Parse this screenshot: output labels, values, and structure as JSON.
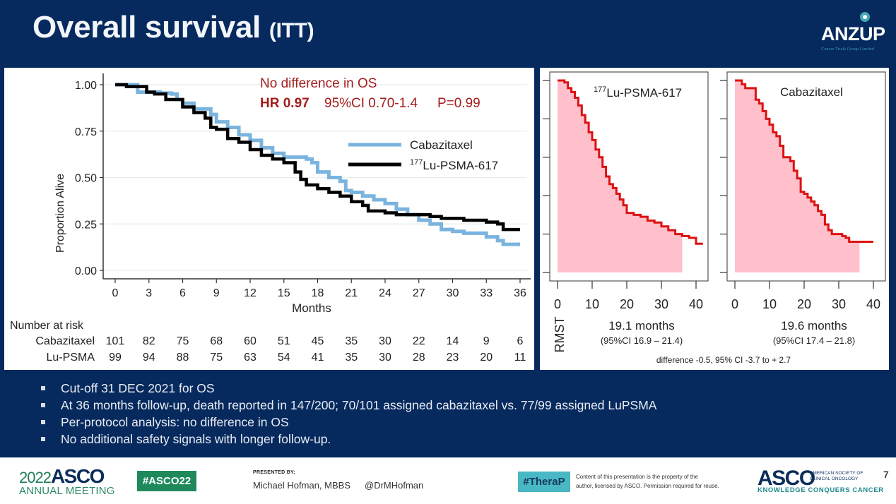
{
  "header": {
    "title": "Overall survival",
    "title_suffix": "(ITT)",
    "logo": {
      "name": "ANZUP",
      "tagline": "Cancer Trials Group Limited"
    }
  },
  "chart_data": [
    {
      "type": "line",
      "subtype": "kaplan-meier",
      "title": "",
      "xlabel": "Months",
      "ylabel": "Proportion Alive",
      "xlim": [
        0,
        36
      ],
      "ylim": [
        0,
        1
      ],
      "x_ticks": [
        0,
        3,
        6,
        9,
        12,
        15,
        18,
        21,
        24,
        27,
        30,
        33,
        36
      ],
      "y_ticks": [
        "0.00",
        "0.25",
        "0.50",
        "0.75",
        "1.00"
      ],
      "grid": "horizontal",
      "legend_position": "right-middle",
      "annotations": {
        "headline": "No difference in OS",
        "hr_label": "HR 0.97",
        "ci_label": "95%CI 0.70-1.4",
        "p_label": "P=0.99"
      },
      "series": [
        {
          "name": "Cabazitaxel",
          "legend_label": "Cabazitaxel",
          "color": "#7ab4de",
          "x": [
            0,
            1,
            2,
            3,
            4,
            5,
            5.5,
            6,
            7,
            8,
            8.5,
            9,
            10,
            11,
            12,
            13,
            14,
            15,
            16,
            17,
            17.5,
            18,
            19,
            20,
            20.5,
            21,
            22,
            23,
            24,
            25,
            26,
            27,
            28,
            29,
            30,
            31,
            32,
            33,
            34,
            34.5,
            36
          ],
          "y": [
            1.0,
            1.0,
            0.96,
            0.96,
            0.955,
            0.95,
            0.92,
            0.9,
            0.87,
            0.87,
            0.84,
            0.8,
            0.77,
            0.73,
            0.7,
            0.66,
            0.63,
            0.61,
            0.61,
            0.6,
            0.58,
            0.53,
            0.5,
            0.48,
            0.43,
            0.42,
            0.4,
            0.38,
            0.36,
            0.33,
            0.3,
            0.27,
            0.25,
            0.22,
            0.21,
            0.2,
            0.2,
            0.18,
            0.16,
            0.14,
            0.14
          ]
        },
        {
          "name": "177Lu-PSMA-617",
          "legend_label": "Lu-PSMA-617",
          "legend_superscript": "177",
          "color": "#000000",
          "x": [
            0,
            1,
            2,
            2.8,
            3.5,
            4.5,
            5,
            6,
            7,
            8,
            8.5,
            9,
            10,
            11,
            12,
            13,
            14,
            15,
            16,
            16.5,
            17,
            18,
            19,
            20,
            21,
            22,
            22.5,
            24,
            25,
            26,
            27,
            28,
            29,
            30,
            31,
            32,
            33,
            34,
            34.5,
            36
          ],
          "y": [
            1.0,
            0.99,
            0.99,
            0.96,
            0.95,
            0.92,
            0.92,
            0.88,
            0.85,
            0.82,
            0.77,
            0.76,
            0.71,
            0.69,
            0.65,
            0.62,
            0.6,
            0.58,
            0.53,
            0.49,
            0.46,
            0.44,
            0.42,
            0.4,
            0.37,
            0.35,
            0.32,
            0.31,
            0.3,
            0.3,
            0.3,
            0.29,
            0.28,
            0.28,
            0.27,
            0.27,
            0.26,
            0.25,
            0.22,
            0.22
          ]
        }
      ],
      "risk_table": {
        "title": "Number at risk",
        "rows": [
          {
            "label": "Cabazitaxel",
            "values": [
              101,
              82,
              75,
              68,
              60,
              51,
              45,
              35,
              30,
              22,
              14,
              9,
              6
            ]
          },
          {
            "label": "Lu-PSMA",
            "values": [
              99,
              94,
              88,
              75,
              63,
              54,
              41,
              35,
              30,
              28,
              23,
              20,
              11
            ]
          }
        ]
      }
    },
    {
      "type": "area",
      "subtype": "rmst",
      "title": "177Lu-PSMA-617",
      "title_superscript": "177",
      "title_main": "Lu-PSMA-617",
      "xlim": [
        0,
        42
      ],
      "x_ticks": [
        "0",
        "10",
        "20",
        "30",
        "40"
      ],
      "ylim": [
        0,
        1
      ],
      "y_tick_count": 6,
      "shaded_until": 36,
      "line_color": "#dd1111",
      "fill_color": "#ffc0cb",
      "x": [
        0,
        2,
        3,
        4,
        5,
        6,
        7,
        8,
        9,
        10,
        11,
        12,
        13,
        14,
        15,
        16,
        17,
        18,
        19,
        20,
        22,
        24,
        26,
        28,
        30,
        32,
        34,
        36,
        38,
        40,
        42
      ],
      "y": [
        1.0,
        0.99,
        0.96,
        0.94,
        0.91,
        0.87,
        0.82,
        0.78,
        0.73,
        0.69,
        0.64,
        0.6,
        0.55,
        0.5,
        0.46,
        0.44,
        0.41,
        0.38,
        0.35,
        0.31,
        0.3,
        0.29,
        0.27,
        0.26,
        0.24,
        0.22,
        0.2,
        0.19,
        0.18,
        0.15,
        0.15
      ],
      "rmst_value": "19.1 months",
      "rmst_ci": "(95%CI  16.9 – 21.4)"
    },
    {
      "type": "area",
      "subtype": "rmst",
      "title": "Cabazitaxel",
      "xlim": [
        0,
        42
      ],
      "x_ticks": [
        "0",
        "10",
        "20",
        "30",
        "40"
      ],
      "ylim": [
        0,
        1
      ],
      "y_tick_count": 6,
      "shaded_until": 36,
      "line_color": "#dd1111",
      "fill_color": "#ffc0cb",
      "x": [
        0,
        1,
        2,
        3,
        4,
        5,
        6,
        7,
        8,
        9,
        10,
        11,
        12,
        13,
        14,
        15,
        16,
        17,
        18,
        19,
        20,
        21,
        22,
        23,
        24,
        25,
        26,
        27,
        28,
        29,
        30,
        31,
        32,
        33,
        34,
        35,
        36,
        38,
        40
      ],
      "y": [
        1.0,
        1.0,
        0.98,
        0.96,
        0.96,
        0.96,
        0.9,
        0.88,
        0.84,
        0.8,
        0.77,
        0.73,
        0.71,
        0.66,
        0.6,
        0.6,
        0.58,
        0.53,
        0.49,
        0.42,
        0.41,
        0.39,
        0.37,
        0.35,
        0.32,
        0.3,
        0.25,
        0.22,
        0.2,
        0.2,
        0.2,
        0.19,
        0.18,
        0.16,
        0.16,
        0.16,
        0.16,
        0.16,
        0.16
      ],
      "rmst_value": "19.6 months",
      "rmst_ci": "(95%CI 17.4 – 21.8)"
    }
  ],
  "rmst": {
    "axis_label": "RMST",
    "difference": "difference -0.5, 95% CI -3.7 to + 2.7"
  },
  "bullets": [
    "Cut-off 31 DEC 2021 for OS",
    "At 36 months follow-up, death reported in 147/200; 70/101 assigned cabazitaxel vs. 77/99 assigned LuPSMA",
    "Per-protocol analysis: no difference in OS",
    "No additional safety signals with longer follow-up."
  ],
  "footer": {
    "meeting_year": "2022",
    "meeting_brand": "ASCO",
    "meeting_name": "ANNUAL MEETING",
    "hashtag": "#ASCO22",
    "presented_by": "PRESENTED BY:",
    "presenter": "Michael Hofman, MBBS",
    "handle": "@DrMHofman",
    "trial_hashtag": "#TheraP",
    "copyright_line1": "Content of this presentation is the property of the",
    "copyright_line2": "author, licensed by ASCO. Permission required for reuse.",
    "asco_logo": "ASCO",
    "asco_society_line1": "AMERICAN SOCIETY OF",
    "asco_society_line2": "CLINICAL ONCOLOGY",
    "asco_tagline": "KNOWLEDGE CONQUERS CANCER",
    "page_number": "7"
  }
}
